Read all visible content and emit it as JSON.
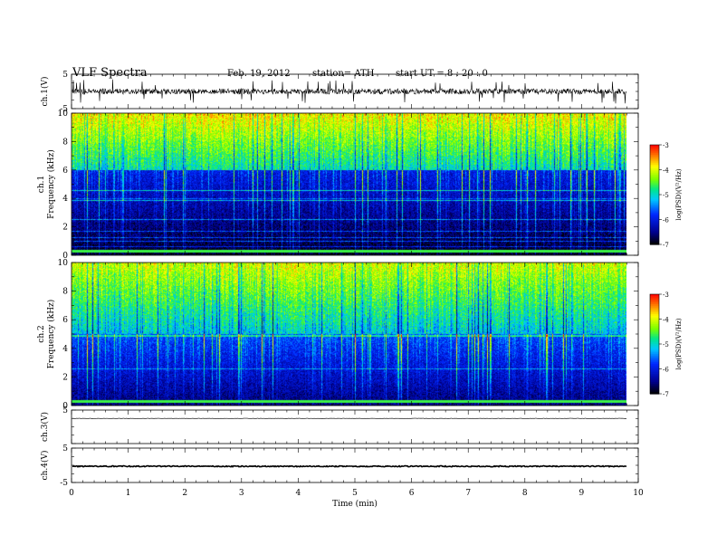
{
  "header": {
    "title": "VLF  Spectra",
    "date": "Feb. 19, 2012",
    "station": "station= ATH",
    "start": "start  UT  =   8  : 20 : 0"
  },
  "chart_data": {
    "type": "heatmap",
    "x_axis": {
      "label": "Time  (min)",
      "range": [
        0,
        10
      ],
      "ticks": [
        "0",
        "1",
        "2",
        "3",
        "4",
        "5",
        "6",
        "7",
        "8",
        "9",
        "10"
      ]
    },
    "panels": [
      {
        "id": "ch1-waveform",
        "type": "line",
        "ylabel": "ch.1(V)",
        "ylim": [
          -5,
          5
        ],
        "y_ticks": [
          "5",
          "-5"
        ],
        "data_end_min": 9.8,
        "baseline": 0,
        "typical_amplitude": 0.8,
        "spike_amplitude": 3.5
      },
      {
        "id": "ch1-spectrogram",
        "type": "heatmap",
        "ylabel_channel": "ch.1",
        "ylabel": "Frequency  (kHz)",
        "ylim": [
          0,
          10
        ],
        "y_ticks": [
          "0",
          "2",
          "4",
          "6",
          "8",
          "10"
        ],
        "data_end_min": 9.8,
        "colorbar": {
          "label": "log(PSD)(V²/Hz)",
          "range": [
            -7,
            -3
          ],
          "ticks": [
            "-3",
            "-4",
            "-5",
            "-6",
            "-7"
          ]
        },
        "high_band_kHz": [
          6,
          10
        ],
        "low_band_kHz": [
          0,
          6
        ],
        "high_band_level": -4.4,
        "low_band_level": -6.5,
        "bright_line_kHz": 0.3
      },
      {
        "id": "ch2-spectrogram",
        "type": "heatmap",
        "ylabel_channel": "ch.2",
        "ylabel": "Frequency  (kHz)",
        "ylim": [
          0,
          10
        ],
        "y_ticks": [
          "0",
          "2",
          "4",
          "6",
          "8",
          "10"
        ],
        "data_end_min": 9.8,
        "colorbar": {
          "label": "log(PSD)(V²/Hz)",
          "range": [
            -7,
            -3
          ],
          "ticks": [
            "-3",
            "-4",
            "-5",
            "-6",
            "-7"
          ]
        },
        "high_band_kHz": [
          5,
          10
        ],
        "low_band_kHz": [
          0,
          5
        ],
        "high_band_level": -4.6,
        "low_band_level": -6.2,
        "bright_line_kHz": 0.3
      },
      {
        "id": "ch3-waveform",
        "type": "line",
        "ylabel": "ch.3(V)",
        "ylim": [
          -5,
          5
        ],
        "y_ticks": [
          "5"
        ],
        "data_end_min": 9.8,
        "baseline": 2.5,
        "typical_amplitude": 0.05
      },
      {
        "id": "ch4-waveform",
        "type": "line",
        "ylabel": "ch.4(V)",
        "ylim": [
          -5,
          5
        ],
        "y_ticks": [
          "5",
          "-5"
        ],
        "data_end_min": 9.8,
        "baseline": -0.3,
        "typical_amplitude": 0.15
      }
    ]
  }
}
